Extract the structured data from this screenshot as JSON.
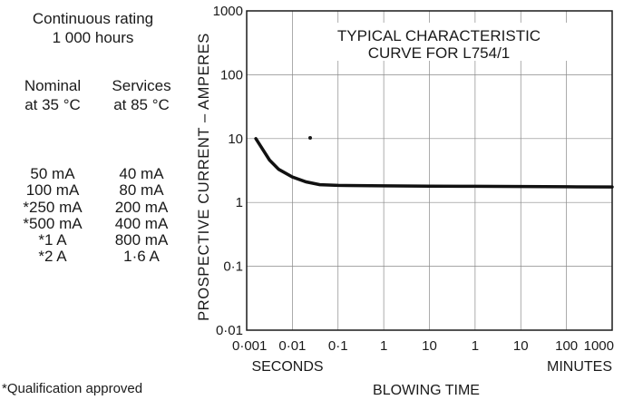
{
  "left_panel": {
    "rating_line1": "Continuous rating",
    "rating_line2": "1 000 hours",
    "col1_header_line1": "Nominal",
    "col1_header_line2": "at 35 °C",
    "col2_header_line1": "Services",
    "col2_header_line2": "at 85 °C",
    "nominal_values": [
      "50 mA",
      "100 mA",
      "*250 mA",
      "*500 mA",
      "*1 A",
      "*2 A"
    ],
    "service_values": [
      "40 mA",
      "80 mA",
      "200 mA",
      "400 mA",
      "800 mA",
      "1·6 A"
    ],
    "footnote": "*Qualification approved"
  },
  "chart_data": {
    "type": "line",
    "title_line1": "TYPICAL CHARACTERISTIC",
    "title_line2": "CURVE FOR L754/1",
    "ylabel": "PROSPECTIVE CURRENT – AMPERES",
    "xlabel": "BLOWING TIME",
    "x_unit_seconds": "SECONDS",
    "x_unit_minutes": "MINUTES",
    "x_tick_labels": [
      "0·001",
      "0·01",
      "0·1",
      "1",
      "10",
      "1",
      "10",
      "100",
      "1000"
    ],
    "y_tick_labels": [
      "0·01",
      "0·1",
      "1",
      "10",
      "100",
      "1000"
    ],
    "y_scale": "log",
    "ylim": [
      0.01,
      1000
    ],
    "grid": true,
    "series": [
      {
        "x_decade": [
          0.2,
          0.35,
          0.5,
          0.7,
          1.0,
          1.3,
          1.6,
          2.0,
          3.0,
          4.0,
          5.0,
          6.0,
          7.0,
          8.0
        ],
        "y": [
          10,
          6.8,
          4.6,
          3.3,
          2.5,
          2.1,
          1.9,
          1.85,
          1.82,
          1.8,
          1.79,
          1.78,
          1.76,
          1.75
        ]
      }
    ]
  }
}
